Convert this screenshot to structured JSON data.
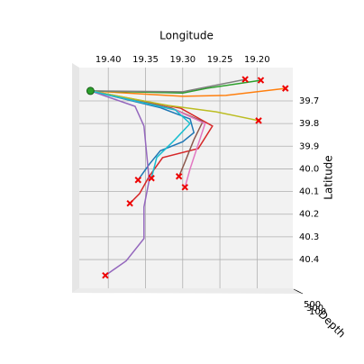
{
  "chart_data": {
    "type": "line",
    "x_label": "Longitude",
    "y_label": "Latitude",
    "z_label": "Depth",
    "xlim": [
      19.439,
      19.152
    ],
    "ylim": [
      39.553,
      40.527
    ],
    "xticks": [
      {
        "value": 19.4,
        "label": "19.40"
      },
      19.35,
      {
        "value": 19.3,
        "label": "19.30"
      },
      19.25,
      {
        "value": 19.2,
        "label": "19.20"
      }
    ],
    "yticks": [
      39.7,
      39.8,
      39.9,
      {
        "value": 40.0,
        "label": "40.0"
      },
      40.1,
      40.2,
      40.3,
      40.4
    ],
    "zticks": [
      500,
      300,
      100
    ],
    "grid": true,
    "series": [
      {
        "color": "#1f77b4",
        "x": [
          19.424,
          19.33,
          19.29,
          19.285,
          19.3,
          19.33,
          19.345,
          19.36
        ],
        "y": [
          39.656,
          39.73,
          39.78,
          39.84,
          39.88,
          39.92,
          39.98,
          40.049
        ]
      },
      {
        "color": "#ff7f0e",
        "x": [
          19.424,
          19.3,
          19.242,
          19.162
        ],
        "y": [
          39.656,
          39.68,
          39.676,
          39.645
        ]
      },
      {
        "color": "#2ca02c",
        "x": [
          19.424,
          19.3,
          19.267,
          19.195
        ],
        "y": [
          39.656,
          39.665,
          39.644,
          39.609
        ]
      },
      {
        "color": "#d62728",
        "x": [
          19.424,
          19.303,
          19.26,
          19.279,
          19.327,
          19.345,
          19.358,
          19.371
        ],
        "y": [
          39.656,
          39.732,
          39.811,
          39.91,
          39.95,
          40.033,
          40.109,
          40.152
        ]
      },
      {
        "color": "#9467bd",
        "x": [
          19.424,
          19.364,
          19.352,
          19.345,
          19.352,
          19.352,
          19.376,
          19.404
        ],
        "y": [
          39.656,
          39.724,
          39.811,
          40.049,
          40.168,
          40.307,
          40.406,
          40.47
        ]
      },
      {
        "color": "#8c564b",
        "x": [
          19.424,
          19.315,
          19.273,
          19.285,
          19.297,
          19.305
        ],
        "y": [
          39.656,
          39.732,
          39.791,
          39.871,
          39.97,
          40.033
        ]
      },
      {
        "color": "#e377c2",
        "x": [
          19.424,
          19.31,
          19.27,
          19.28,
          19.29,
          19.297
        ],
        "y": [
          39.656,
          39.74,
          39.8,
          39.9,
          40.0,
          40.081
        ]
      },
      {
        "color": "#7f7f7f",
        "x": [
          19.424,
          19.3,
          19.216
        ],
        "y": [
          39.656,
          39.66,
          39.605
        ]
      },
      {
        "color": "#bcbd22",
        "x": [
          19.424,
          19.32,
          19.255,
          19.198
        ],
        "y": [
          39.656,
          39.72,
          39.748,
          39.787
        ]
      },
      {
        "color": "#17becf",
        "x": [
          19.424,
          19.31,
          19.29,
          19.31,
          19.335,
          19.342
        ],
        "y": [
          39.656,
          39.74,
          39.8,
          39.87,
          39.95,
          40.041
        ]
      }
    ]
  }
}
